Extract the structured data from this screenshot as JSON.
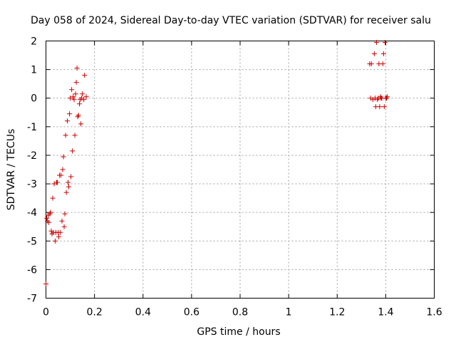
{
  "chart_data": {
    "type": "scatter",
    "title": "Day 058 of 2024, Sidereal Day-to-day VTEC variation (SDTVAR) for receiver salu",
    "xlabel": "GPS time / hours",
    "ylabel": "SDTVAR / TECUs",
    "xlim": [
      0,
      1.6
    ],
    "ylim": [
      -7,
      2
    ],
    "xticks": [
      0,
      0.2,
      0.4,
      0.6,
      0.8,
      1,
      1.2,
      1.4,
      1.6
    ],
    "xtick_labels": [
      "0",
      "0.2",
      "0.4",
      "0.6",
      "0.8",
      "1",
      "1.2",
      "1.4",
      "1.6"
    ],
    "yticks": [
      2,
      1,
      0,
      -1,
      -2,
      -3,
      -4,
      -5,
      -6,
      -7
    ],
    "ytick_labels": [
      "2",
      "1",
      "0",
      "-1",
      "-2",
      "-3",
      "-4",
      "-5",
      "-6",
      "-7"
    ],
    "grid": true,
    "marker": "+",
    "color": "#cc0000",
    "series": [
      {
        "name": "SDTVAR",
        "x": [
          0.0,
          0.003,
          0.006,
          0.009,
          0.012,
          0.016,
          0.019,
          0.022,
          0.025,
          0.028,
          0.031,
          0.034,
          0.038,
          0.041,
          0.044,
          0.047,
          0.05,
          0.053,
          0.056,
          0.059,
          0.062,
          0.066,
          0.069,
          0.072,
          0.075,
          0.078,
          0.081,
          0.084,
          0.088,
          0.091,
          0.094,
          0.097,
          0.1,
          0.103,
          0.106,
          0.109,
          0.112,
          0.116,
          0.119,
          0.122,
          0.125,
          0.128,
          0.131,
          0.134,
          0.138,
          0.141,
          0.144,
          0.147,
          0.15,
          0.156,
          0.159,
          0.166,
          1.334,
          1.338,
          1.341,
          1.347,
          1.353,
          1.356,
          1.359,
          1.362,
          1.366,
          1.369,
          1.372,
          1.375,
          1.378,
          1.381,
          1.384,
          1.388,
          1.391,
          1.394,
          1.397,
          1.4,
          1.403,
          1.406
        ],
        "y": [
          -6.5,
          -4.2,
          -4.3,
          -4.1,
          -4.35,
          -4.05,
          -4.0,
          -4.65,
          -4.75,
          -3.5,
          -4.7,
          -3.0,
          -5.0,
          -4.7,
          -2.95,
          -2.95,
          -4.7,
          -4.85,
          -2.7,
          -4.7,
          -2.7,
          -4.3,
          -2.5,
          -2.05,
          -4.5,
          -4.05,
          -1.3,
          -3.3,
          -0.8,
          -2.95,
          -3.1,
          -0.55,
          0.0,
          -2.75,
          0.3,
          -1.85,
          0.05,
          -0.05,
          -1.3,
          0.15,
          0.55,
          1.05,
          -0.65,
          -0.6,
          -0.2,
          -0.05,
          -0.9,
          0.0,
          0.15,
          -0.05,
          0.8,
          0.05,
          1.2,
          0.0,
          1.2,
          -0.05,
          1.55,
          0.0,
          -0.3,
          1.95,
          -0.05,
          0.0,
          1.2,
          -0.3,
          0.05,
          0.0,
          0.0,
          1.2,
          1.55,
          -0.3,
          1.95,
          0.0,
          0.0,
          0.05
        ]
      }
    ]
  }
}
